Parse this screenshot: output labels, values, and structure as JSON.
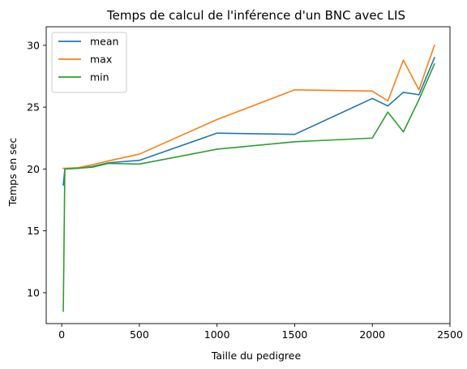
{
  "chart_data": {
    "type": "line",
    "title": "Temps de calcul de l'inférence d'un BNC avec LIS",
    "xlabel": "Taille du pedigree",
    "ylabel": "Temps en sec",
    "xlim": [
      -100,
      2500
    ],
    "ylim": [
      7.5,
      31.5
    ],
    "xticks": [
      0,
      500,
      1000,
      1500,
      2000,
      2500
    ],
    "yticks": [
      10,
      15,
      20,
      25,
      30
    ],
    "grid": false,
    "legend_position": "top-left",
    "series": [
      {
        "name": "mean",
        "color": "#1f77b4",
        "x": [
          10,
          20,
          100,
          200,
          300,
          500,
          1000,
          1500,
          2000,
          2100,
          2200,
          2300,
          2400
        ],
        "y": [
          18.7,
          20.0,
          20.05,
          20.2,
          20.5,
          20.7,
          22.9,
          22.8,
          25.7,
          25.1,
          26.2,
          26.0,
          29.0
        ]
      },
      {
        "name": "max",
        "color": "#ff7f0e",
        "x": [
          10,
          20,
          100,
          200,
          300,
          500,
          1000,
          1500,
          2000,
          2100,
          2200,
          2300,
          2400
        ],
        "y": [
          20.05,
          20.05,
          20.1,
          20.35,
          20.65,
          21.2,
          24.0,
          26.4,
          26.3,
          25.5,
          28.8,
          26.4,
          30.0
        ]
      },
      {
        "name": "min",
        "color": "#2ca02c",
        "x": [
          10,
          20,
          100,
          200,
          300,
          500,
          1000,
          1500,
          2000,
          2100,
          2200,
          2300,
          2400
        ],
        "y": [
          8.5,
          20.0,
          20.05,
          20.15,
          20.45,
          20.4,
          21.6,
          22.2,
          22.5,
          24.6,
          23.0,
          25.6,
          28.5
        ]
      }
    ]
  }
}
